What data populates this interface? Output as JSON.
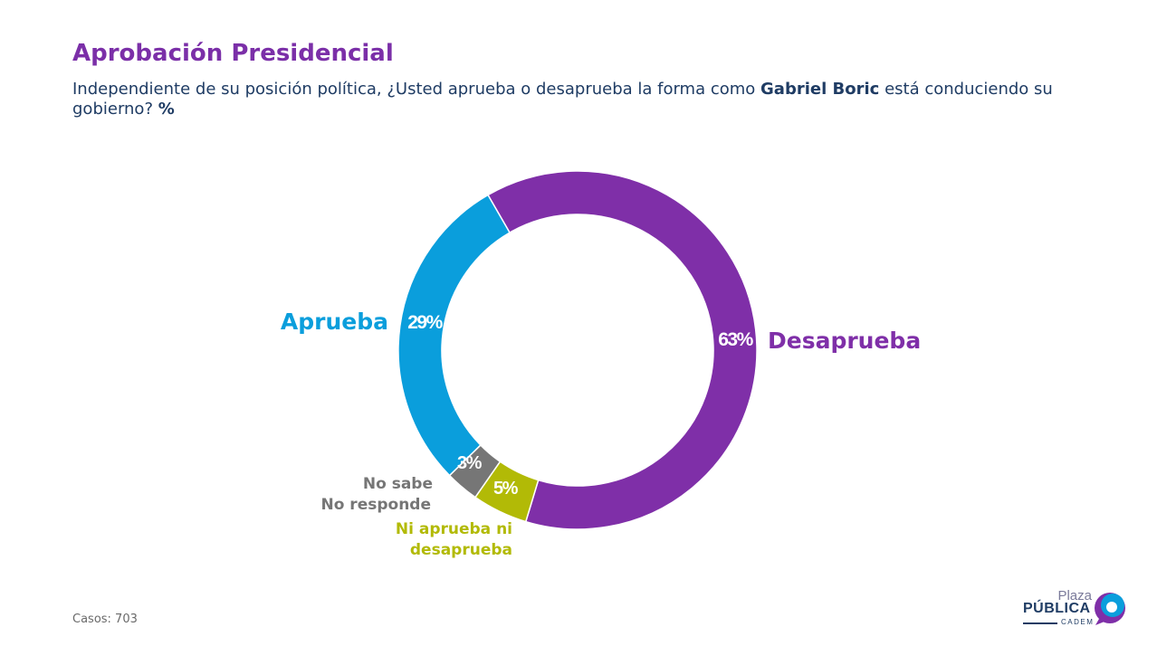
{
  "header": {
    "title": "Aprobación Presidencial",
    "question_part1": "Independiente de su posición política, ¿Usted aprueba o desaprueba la forma como ",
    "question_bold": "Gabriel Boric",
    "question_part2": " está conduciendo su gobierno? ",
    "question_unit": "%"
  },
  "footer": {
    "casos": "Casos: 703"
  },
  "logo": {
    "plaza": "Plaza",
    "publica": "PÚBLICA",
    "cadem": "CADEM"
  },
  "chart_data": {
    "type": "pie",
    "donut": true,
    "unit": "%",
    "series": [
      {
        "name": "Desaprueba",
        "value": 63,
        "label": "63%",
        "color": "#7f2fa8"
      },
      {
        "name": "Ni aprueba ni desaprueba",
        "value": 5,
        "label": "5%",
        "color": "#b2ba06"
      },
      {
        "name": "No sabe No responde",
        "value": 3,
        "label": "3%",
        "color": "#767676"
      },
      {
        "name": "Aprueba",
        "value": 29,
        "label": "29%",
        "color": "#0a9edc"
      }
    ],
    "category_labels": {
      "aprueba": "Aprueba",
      "desaprueba": "Desaprueba",
      "nsnr_line1": "No sabe",
      "nsnr_line2": "No responde",
      "ni_line1": "Ni aprueba ni",
      "ni_line2": "desaprueba"
    }
  }
}
